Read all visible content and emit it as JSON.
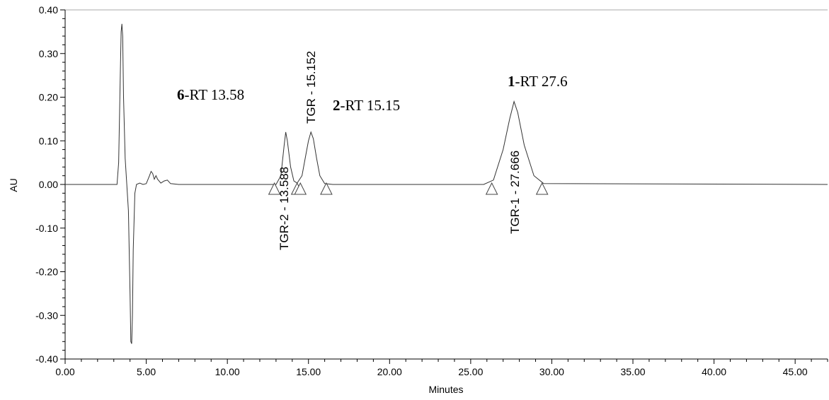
{
  "chart_data": {
    "type": "line",
    "xlabel": "Minutes",
    "ylabel": "AU",
    "xlim": [
      0,
      47
    ],
    "ylim": [
      -0.4,
      0.4
    ],
    "x_ticks": [
      "0.00",
      "5.00",
      "10.00",
      "15.00",
      "20.00",
      "25.00",
      "30.00",
      "35.00",
      "40.00",
      "45.00"
    ],
    "x_tick_values": [
      0,
      5,
      10,
      15,
      20,
      25,
      30,
      35,
      40,
      45
    ],
    "y_ticks": [
      "0.40",
      "0.30",
      "0.20",
      "0.10",
      "0.00",
      "-0.10",
      "-0.20",
      "-0.30",
      "-0.40"
    ],
    "y_tick_values": [
      0.4,
      0.3,
      0.2,
      0.1,
      0.0,
      -0.1,
      -0.2,
      -0.3,
      -0.4
    ],
    "series": [
      {
        "x": [
          0,
          3.2,
          3.3,
          3.4,
          3.45,
          3.5,
          3.55,
          3.6,
          3.7,
          3.8,
          3.9,
          4.0,
          4.05,
          4.1,
          4.15,
          4.2,
          4.3,
          4.4,
          4.6,
          4.8,
          5.0,
          5.2,
          5.3,
          5.4,
          5.5,
          5.6,
          5.7,
          5.9,
          6.1,
          6.3,
          6.5,
          7.0,
          13.0,
          13.3,
          13.5,
          13.6,
          13.7,
          13.9,
          14.1,
          14.3,
          14.6,
          14.8,
          15.0,
          15.15,
          15.3,
          15.5,
          15.7,
          16.0,
          16.5,
          25.8,
          26.4,
          27.0,
          27.4,
          27.67,
          27.9,
          28.3,
          28.9,
          29.5,
          47
        ],
        "y": [
          0,
          0,
          0.05,
          0.25,
          0.35,
          0.368,
          0.34,
          0.2,
          0.06,
          0.0,
          -0.06,
          -0.25,
          -0.36,
          -0.365,
          -0.3,
          -0.15,
          -0.02,
          0.0,
          0.003,
          0.0,
          0.002,
          0.02,
          0.03,
          0.025,
          0.012,
          0.02,
          0.012,
          0.003,
          0.008,
          0.01,
          0.002,
          0.0,
          0.0,
          0.02,
          0.09,
          0.12,
          0.1,
          0.04,
          0.008,
          0.003,
          0.02,
          0.06,
          0.1,
          0.12,
          0.105,
          0.06,
          0.02,
          0.002,
          0.0,
          0.0,
          0.01,
          0.08,
          0.15,
          0.19,
          0.165,
          0.09,
          0.02,
          0.002,
          0.0
        ]
      }
    ],
    "baseline_markers": [
      12.9,
      14.3,
      14.5,
      16.1,
      26.3,
      29.4
    ],
    "peak_labels": [
      {
        "text": "TGR-2 - 13.588",
        "rt": 13.588
      },
      {
        "text": "TGR - 15.152",
        "rt": 15.152
      },
      {
        "text": "TGR-1 - 27.666",
        "rt": 27.666
      }
    ],
    "rt_labels": [
      {
        "num": "6",
        "text": "-RT 13.58"
      },
      {
        "num": "2",
        "text": "-RT 15.15"
      },
      {
        "num": "1",
        "text": "-RT 27.6"
      }
    ]
  }
}
